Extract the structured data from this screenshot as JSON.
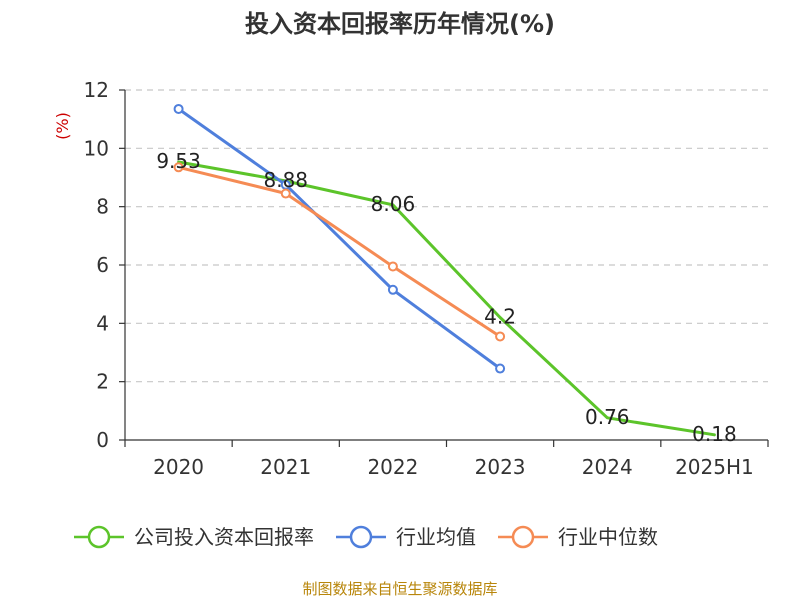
{
  "chart_data": {
    "type": "line",
    "title": "投入资本回报率历年情况(%)",
    "ylabel": "(%)",
    "xlabel": "",
    "categories": [
      "2020",
      "2021",
      "2022",
      "2023",
      "2024",
      "2025H1"
    ],
    "ylim": [
      0,
      12
    ],
    "yticks": [
      0,
      2,
      4,
      6,
      8,
      10,
      12
    ],
    "grid": true,
    "legend_position": "bottom",
    "series": [
      {
        "name": "公司投入资本回报率",
        "color": "#5cc42a",
        "markers": false,
        "values": [
          9.53,
          8.88,
          8.06,
          4.2,
          0.76,
          0.18
        ],
        "labels": [
          "9.53",
          "8.88",
          "8.06",
          "4.2",
          "0.76",
          "0.18"
        ]
      },
      {
        "name": "行业均值",
        "color": "#4f7fdc",
        "markers": true,
        "values": [
          11.35,
          8.75,
          5.15,
          2.45,
          null,
          null
        ]
      },
      {
        "name": "行业中位数",
        "color": "#f58b54",
        "markers": true,
        "values": [
          9.35,
          8.45,
          5.95,
          3.55,
          null,
          null
        ]
      }
    ],
    "source": "制图数据来自恒生聚源数据库"
  }
}
